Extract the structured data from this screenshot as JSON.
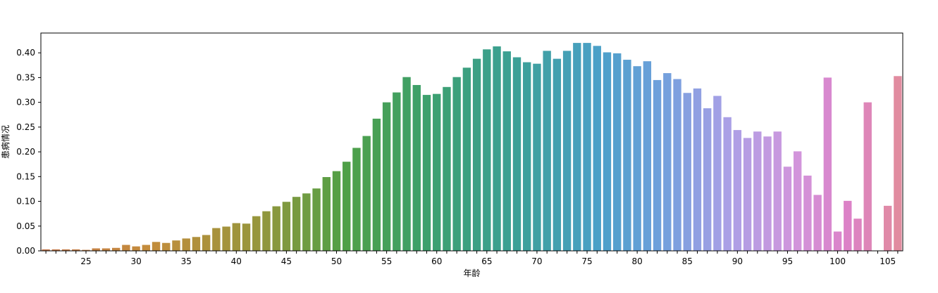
{
  "chart_data": {
    "type": "bar",
    "xlabel": "年龄",
    "ylabel": "患病情况",
    "ylim": [
      0,
      0.44
    ],
    "yticks": [
      0.0,
      0.05,
      0.1,
      0.15,
      0.2,
      0.25,
      0.3,
      0.35,
      0.4
    ],
    "ytick_labels": [
      "0.00",
      "0.05",
      "0.10",
      "0.15",
      "0.20",
      "0.25",
      "0.30",
      "0.35",
      "0.40"
    ],
    "x_start": 21,
    "x_end": 106,
    "xtick_values": [
      25,
      30,
      35,
      40,
      45,
      50,
      55,
      60,
      65,
      70,
      75,
      80,
      85,
      90,
      95,
      100,
      105
    ],
    "xtick_labels": [
      "25",
      "30",
      "35",
      "40",
      "45",
      "50",
      "55",
      "60",
      "65",
      "70",
      "75",
      "80",
      "85",
      "90",
      "95",
      "100",
      "105"
    ],
    "categories": [
      21,
      22,
      23,
      24,
      25,
      26,
      27,
      28,
      29,
      30,
      31,
      32,
      33,
      34,
      35,
      36,
      37,
      38,
      39,
      40,
      41,
      42,
      43,
      44,
      45,
      46,
      47,
      48,
      49,
      50,
      51,
      52,
      53,
      54,
      55,
      56,
      57,
      58,
      59,
      60,
      61,
      62,
      63,
      64,
      65,
      66,
      67,
      68,
      69,
      70,
      71,
      72,
      73,
      74,
      75,
      76,
      77,
      78,
      79,
      80,
      81,
      82,
      83,
      84,
      85,
      86,
      87,
      88,
      89,
      90,
      91,
      92,
      93,
      94,
      95,
      96,
      97,
      98,
      99,
      100,
      101,
      102,
      103,
      104,
      105,
      106
    ],
    "values": [
      0.003,
      0.003,
      0.003,
      0.003,
      0.002,
      0.005,
      0.005,
      0.006,
      0.012,
      0.009,
      0.012,
      0.018,
      0.016,
      0.021,
      0.025,
      0.028,
      0.032,
      0.046,
      0.049,
      0.056,
      0.055,
      0.07,
      0.08,
      0.09,
      0.099,
      0.109,
      0.116,
      0.126,
      0.149,
      0.161,
      0.18,
      0.208,
      0.232,
      0.267,
      0.3,
      0.32,
      0.351,
      0.335,
      0.315,
      0.317,
      0.331,
      0.351,
      0.37,
      0.388,
      0.407,
      0.413,
      0.403,
      0.391,
      0.381,
      0.378,
      0.404,
      0.388,
      0.404,
      0.42,
      0.42,
      0.414,
      0.401,
      0.399,
      0.386,
      0.373,
      0.383,
      0.345,
      0.359,
      0.347,
      0.319,
      0.328,
      0.288,
      0.313,
      0.27,
      0.244,
      0.228,
      0.241,
      0.231,
      0.241,
      0.17,
      0.201,
      0.152,
      0.113,
      0.35,
      0.039,
      0.101,
      0.065,
      0.3,
      null,
      0.091,
      0.353
    ],
    "grid": false,
    "legend": "none"
  }
}
